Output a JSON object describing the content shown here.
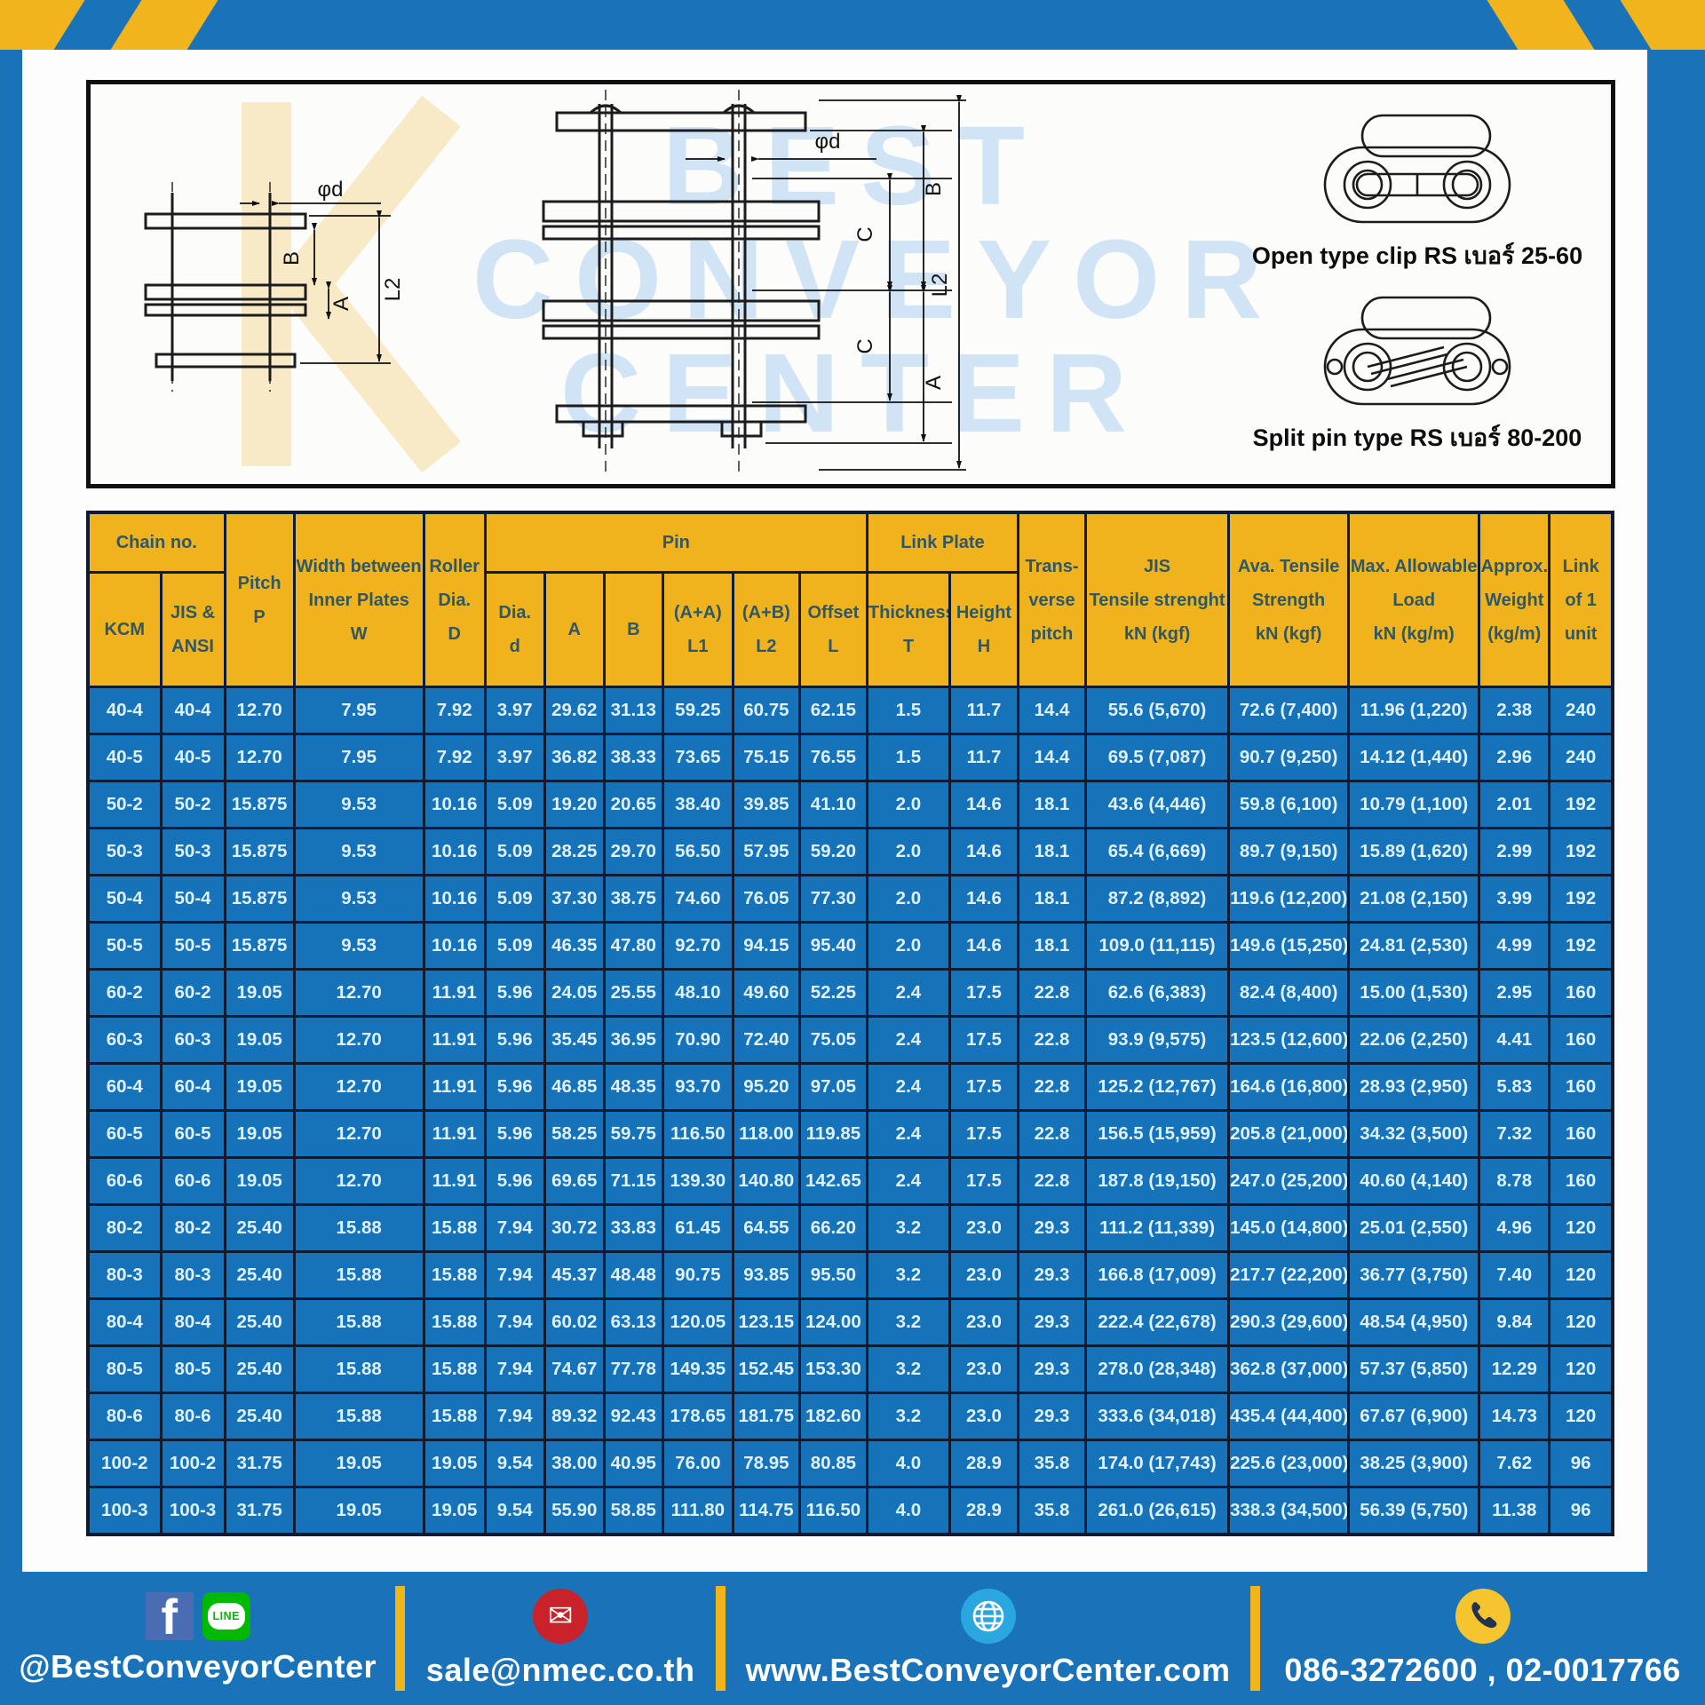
{
  "colors": {
    "accent_blue": "#1a73b9",
    "accent_yellow": "#f2b41d",
    "header_yellow": "#f0b21d",
    "row_blue": "#1673b9",
    "grid_dark": "#0d1c33",
    "header_text": "#2f5866",
    "facebook_blue": "#4a6cb3",
    "line_green": "#00b900",
    "mail_red": "#c9222b",
    "globe_blue": "#2ba7e0",
    "phone_yellow": "#f5c42e"
  },
  "diagram": {
    "watermark": "BEST\nCONVEYOR\nCENTER",
    "left": {
      "phi": "φd",
      "a": "A",
      "b": "B",
      "l2": "L2"
    },
    "middle": {
      "phi": "φd",
      "b": "B",
      "c_upper": "C",
      "c_lower": "C",
      "a": "A",
      "l2": "L2"
    },
    "legend": {
      "open": "Open type clip RS เบอร์ 25-60",
      "split": "Split pin type RS เบอร์ 80-200"
    }
  },
  "table": {
    "header": {
      "chain_no": "Chain no.",
      "kcm": "KCM",
      "jis_ansi": "JIS &\nANSI",
      "pitch": "Pitch\nP",
      "width": "Width between\nInner Plates\nW",
      "roller": "Roller\nDia.\nD",
      "pin": "Pin",
      "dia_d": "Dia.\nd",
      "a": "A",
      "b": "B",
      "l1": "(A+A)\nL1",
      "l2": "(A+B)\nL2",
      "offset": "Offset\nL",
      "link_plate": "Link Plate",
      "thickness": "Thickness\nT",
      "height": "Height\nH",
      "transverse": "Trans-\nverse\npitch",
      "jis_tensile": "JIS\nTensile strenght\nkN (kgf)",
      "ava_tensile": "Ava. Tensile\nStrength\nkN (kgf)",
      "max_load": "Max. Allowable\nLoad\nkN (kg/m)",
      "approx_weight": "Approx.\nWeight\n(kg/m)",
      "link_unit": "Link\nof 1\nunit"
    },
    "rows": [
      [
        "40-4",
        "40-4",
        "12.70",
        "7.95",
        "7.92",
        "3.97",
        "29.62",
        "31.13",
        "59.25",
        "60.75",
        "62.15",
        "1.5",
        "11.7",
        "14.4",
        "55.6 (5,670)",
        "72.6 (7,400)",
        "11.96 (1,220)",
        "2.38",
        "240"
      ],
      [
        "40-5",
        "40-5",
        "12.70",
        "7.95",
        "7.92",
        "3.97",
        "36.82",
        "38.33",
        "73.65",
        "75.15",
        "76.55",
        "1.5",
        "11.7",
        "14.4",
        "69.5 (7,087)",
        "90.7 (9,250)",
        "14.12 (1,440)",
        "2.96",
        "240"
      ],
      [
        "50-2",
        "50-2",
        "15.875",
        "9.53",
        "10.16",
        "5.09",
        "19.20",
        "20.65",
        "38.40",
        "39.85",
        "41.10",
        "2.0",
        "14.6",
        "18.1",
        "43.6 (4,446)",
        "59.8 (6,100)",
        "10.79 (1,100)",
        "2.01",
        "192"
      ],
      [
        "50-3",
        "50-3",
        "15.875",
        "9.53",
        "10.16",
        "5.09",
        "28.25",
        "29.70",
        "56.50",
        "57.95",
        "59.20",
        "2.0",
        "14.6",
        "18.1",
        "65.4 (6,669)",
        "89.7 (9,150)",
        "15.89 (1,620)",
        "2.99",
        "192"
      ],
      [
        "50-4",
        "50-4",
        "15.875",
        "9.53",
        "10.16",
        "5.09",
        "37.30",
        "38.75",
        "74.60",
        "76.05",
        "77.30",
        "2.0",
        "14.6",
        "18.1",
        "87.2 (8,892)",
        "119.6 (12,200)",
        "21.08 (2,150)",
        "3.99",
        "192"
      ],
      [
        "50-5",
        "50-5",
        "15.875",
        "9.53",
        "10.16",
        "5.09",
        "46.35",
        "47.80",
        "92.70",
        "94.15",
        "95.40",
        "2.0",
        "14.6",
        "18.1",
        "109.0 (11,115)",
        "149.6 (15,250)",
        "24.81 (2,530)",
        "4.99",
        "192"
      ],
      [
        "60-2",
        "60-2",
        "19.05",
        "12.70",
        "11.91",
        "5.96",
        "24.05",
        "25.55",
        "48.10",
        "49.60",
        "52.25",
        "2.4",
        "17.5",
        "22.8",
        "62.6 (6,383)",
        "82.4 (8,400)",
        "15.00 (1,530)",
        "2.95",
        "160"
      ],
      [
        "60-3",
        "60-3",
        "19.05",
        "12.70",
        "11.91",
        "5.96",
        "35.45",
        "36.95",
        "70.90",
        "72.40",
        "75.05",
        "2.4",
        "17.5",
        "22.8",
        "93.9 (9,575)",
        "123.5 (12,600)",
        "22.06 (2,250)",
        "4.41",
        "160"
      ],
      [
        "60-4",
        "60-4",
        "19.05",
        "12.70",
        "11.91",
        "5.96",
        "46.85",
        "48.35",
        "93.70",
        "95.20",
        "97.05",
        "2.4",
        "17.5",
        "22.8",
        "125.2 (12,767)",
        "164.6 (16,800)",
        "28.93 (2,950)",
        "5.83",
        "160"
      ],
      [
        "60-5",
        "60-5",
        "19.05",
        "12.70",
        "11.91",
        "5.96",
        "58.25",
        "59.75",
        "116.50",
        "118.00",
        "119.85",
        "2.4",
        "17.5",
        "22.8",
        "156.5 (15,959)",
        "205.8 (21,000)",
        "34.32 (3,500)",
        "7.32",
        "160"
      ],
      [
        "60-6",
        "60-6",
        "19.05",
        "12.70",
        "11.91",
        "5.96",
        "69.65",
        "71.15",
        "139.30",
        "140.80",
        "142.65",
        "2.4",
        "17.5",
        "22.8",
        "187.8 (19,150)",
        "247.0 (25,200)",
        "40.60 (4,140)",
        "8.78",
        "160"
      ],
      [
        "80-2",
        "80-2",
        "25.40",
        "15.88",
        "15.88",
        "7.94",
        "30.72",
        "33.83",
        "61.45",
        "64.55",
        "66.20",
        "3.2",
        "23.0",
        "29.3",
        "111.2 (11,339)",
        "145.0 (14,800)",
        "25.01 (2,550)",
        "4.96",
        "120"
      ],
      [
        "80-3",
        "80-3",
        "25.40",
        "15.88",
        "15.88",
        "7.94",
        "45.37",
        "48.48",
        "90.75",
        "93.85",
        "95.50",
        "3.2",
        "23.0",
        "29.3",
        "166.8 (17,009)",
        "217.7 (22,200)",
        "36.77 (3,750)",
        "7.40",
        "120"
      ],
      [
        "80-4",
        "80-4",
        "25.40",
        "15.88",
        "15.88",
        "7.94",
        "60.02",
        "63.13",
        "120.05",
        "123.15",
        "124.00",
        "3.2",
        "23.0",
        "29.3",
        "222.4 (22,678)",
        "290.3 (29,600)",
        "48.54 (4,950)",
        "9.84",
        "120"
      ],
      [
        "80-5",
        "80-5",
        "25.40",
        "15.88",
        "15.88",
        "7.94",
        "74.67",
        "77.78",
        "149.35",
        "152.45",
        "153.30",
        "3.2",
        "23.0",
        "29.3",
        "278.0 (28,348)",
        "362.8 (37,000)",
        "57.37 (5,850)",
        "12.29",
        "120"
      ],
      [
        "80-6",
        "80-6",
        "25.40",
        "15.88",
        "15.88",
        "7.94",
        "89.32",
        "92.43",
        "178.65",
        "181.75",
        "182.60",
        "3.2",
        "23.0",
        "29.3",
        "333.6 (34,018)",
        "435.4 (44,400)",
        "67.67 (6,900)",
        "14.73",
        "120"
      ],
      [
        "100-2",
        "100-2",
        "31.75",
        "19.05",
        "19.05",
        "9.54",
        "38.00",
        "40.95",
        "76.00",
        "78.95",
        "80.85",
        "4.0",
        "28.9",
        "35.8",
        "174.0 (17,743)",
        "225.6 (23,000)",
        "38.25 (3,900)",
        "7.62",
        "96"
      ],
      [
        "100-3",
        "100-3",
        "31.75",
        "19.05",
        "19.05",
        "9.54",
        "55.90",
        "58.85",
        "111.80",
        "114.75",
        "116.50",
        "4.0",
        "28.9",
        "35.8",
        "261.0 (26,615)",
        "338.3 (34,500)",
        "56.39 (5,750)",
        "11.38",
        "96"
      ]
    ]
  },
  "footer": {
    "social": {
      "handle": "@BestConveyorCenter",
      "line_text": "LINE",
      "facebook_letter": "f"
    },
    "email": {
      "value": "sale@nmec.co.th"
    },
    "website": {
      "value": "www.BestConveyorCenter.com"
    },
    "phone": {
      "value": "086-3272600 , 02-0017766"
    }
  }
}
